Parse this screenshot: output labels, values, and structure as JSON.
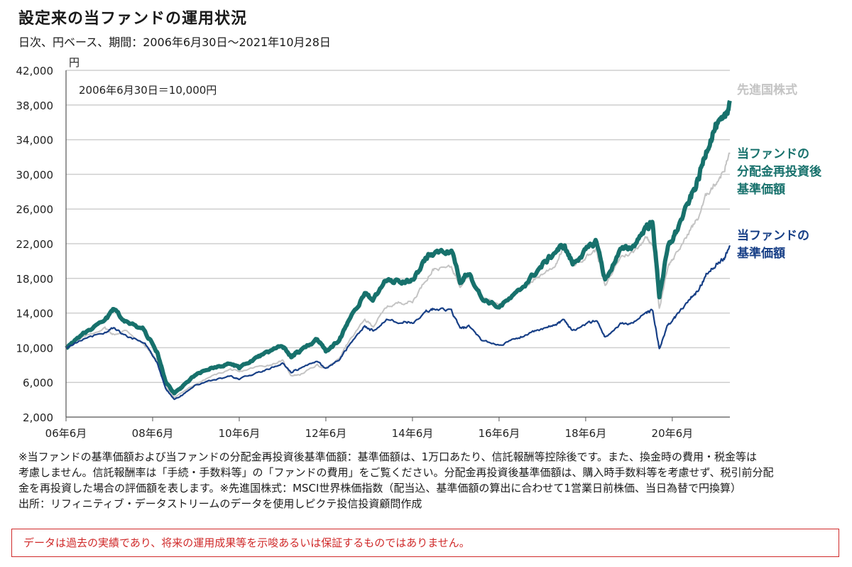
{
  "header": {
    "title": "設定来の当ファンドの運用状況",
    "subtitle": "日次、円ベース、期間：2006年6月30日～2021年10月28日"
  },
  "chart_data": {
    "type": "line",
    "title": "設定来の当ファンドの運用状況",
    "ylabel": "円",
    "xlabel": "",
    "ylim": [
      2000,
      42000
    ],
    "xlim": [
      2006.5,
      2021.83
    ],
    "yticks": [
      2000,
      6000,
      10000,
      14000,
      18000,
      22000,
      26000,
      30000,
      34000,
      38000,
      42000
    ],
    "ytick_labels": [
      "2,000",
      "6,000",
      "10,000",
      "14,000",
      "18,000",
      "22,000",
      "26,000",
      "30,000",
      "34,000",
      "38,000",
      "42,000"
    ],
    "xticks": [
      2006.5,
      2008.5,
      2010.5,
      2012.5,
      2014.5,
      2016.5,
      2018.5,
      2020.5
    ],
    "xtick_labels": [
      "06年6月",
      "08年6月",
      "10年6月",
      "12年6月",
      "14年6月",
      "16年6月",
      "18年6月",
      "20年6月"
    ],
    "grid": "horizontal",
    "annotation": "2006年6月30日＝10,000円",
    "series": [
      {
        "name": "先進国株式",
        "label_lines": [
          "先進国株式"
        ],
        "color": "#c4c4c4",
        "x": [
          2006.5,
          2006.9,
          2007.4,
          2007.6,
          2007.9,
          2008.3,
          2008.6,
          2008.8,
          2009.0,
          2009.2,
          2009.5,
          2009.9,
          2010.3,
          2010.5,
          2010.9,
          2011.2,
          2011.5,
          2011.7,
          2011.9,
          2012.3,
          2012.5,
          2012.8,
          2013.0,
          2013.4,
          2013.6,
          2013.9,
          2014.2,
          2014.5,
          2014.8,
          2015.0,
          2015.4,
          2015.6,
          2015.8,
          2016.1,
          2016.5,
          2016.9,
          2017.2,
          2017.5,
          2017.8,
          2018.0,
          2018.2,
          2018.5,
          2018.75,
          2018.95,
          2019.3,
          2019.6,
          2019.9,
          2020.05,
          2020.2,
          2020.4,
          2020.6,
          2020.9,
          2021.1,
          2021.3,
          2021.5,
          2021.7,
          2021.83
        ],
        "values": [
          10000,
          11200,
          12300,
          11500,
          12000,
          10300,
          8600,
          5500,
          4300,
          4900,
          5800,
          6800,
          7500,
          7200,
          7800,
          8000,
          8500,
          6800,
          6900,
          8000,
          7600,
          8700,
          10500,
          13200,
          12500,
          14700,
          15200,
          15300,
          17800,
          19100,
          19300,
          17200,
          18500,
          15800,
          15100,
          16200,
          17500,
          18500,
          19500,
          21800,
          19500,
          20500,
          21300,
          17000,
          20500,
          21000,
          22800,
          22000,
          14500,
          19500,
          20800,
          23500,
          25000,
          27800,
          29000,
          30500,
          32500
        ]
      },
      {
        "name": "当ファンドの分配金再投資後基準価額",
        "label_lines": [
          "当ファンドの",
          "分配金再投資後",
          "基準価額"
        ],
        "color": "#17716c",
        "x": [
          2006.5,
          2006.9,
          2007.4,
          2007.6,
          2007.9,
          2008.3,
          2008.6,
          2008.8,
          2009.0,
          2009.2,
          2009.5,
          2009.9,
          2010.3,
          2010.5,
          2010.9,
          2011.2,
          2011.5,
          2011.7,
          2011.9,
          2012.3,
          2012.5,
          2012.8,
          2013.0,
          2013.4,
          2013.6,
          2013.9,
          2014.2,
          2014.5,
          2014.8,
          2015.0,
          2015.4,
          2015.6,
          2015.8,
          2016.1,
          2016.5,
          2016.9,
          2017.2,
          2017.5,
          2017.8,
          2018.0,
          2018.2,
          2018.5,
          2018.75,
          2018.95,
          2019.3,
          2019.6,
          2019.9,
          2020.05,
          2020.2,
          2020.4,
          2020.6,
          2020.9,
          2021.1,
          2021.3,
          2021.5,
          2021.7,
          2021.83
        ],
        "values": [
          10000,
          11600,
          13100,
          14400,
          12900,
          12100,
          9500,
          6200,
          4700,
          5600,
          6900,
          7700,
          8200,
          7700,
          8800,
          9600,
          10200,
          9000,
          9600,
          11000,
          9600,
          10800,
          12900,
          16200,
          15600,
          17800,
          17600,
          17800,
          20300,
          20900,
          21000,
          17800,
          18700,
          15700,
          14700,
          16200,
          17900,
          19500,
          21100,
          21800,
          19700,
          21200,
          22300,
          17800,
          21200,
          21700,
          24000,
          24300,
          16000,
          21500,
          23500,
          27000,
          29400,
          33000,
          35500,
          36200,
          38500
        ]
      },
      {
        "name": "当ファンドの基準価額",
        "label_lines": [
          "当ファンドの",
          "基準価額"
        ],
        "color": "#173f86",
        "x": [
          2006.5,
          2006.9,
          2007.4,
          2007.6,
          2007.9,
          2008.3,
          2008.6,
          2008.8,
          2009.0,
          2009.2,
          2009.5,
          2009.9,
          2010.3,
          2010.5,
          2010.9,
          2011.2,
          2011.5,
          2011.7,
          2011.9,
          2012.3,
          2012.5,
          2012.8,
          2013.0,
          2013.4,
          2013.6,
          2013.9,
          2014.2,
          2014.5,
          2014.8,
          2015.0,
          2015.4,
          2015.6,
          2015.8,
          2016.1,
          2016.5,
          2016.9,
          2017.2,
          2017.5,
          2017.8,
          2018.0,
          2018.2,
          2018.5,
          2018.75,
          2018.95,
          2019.3,
          2019.6,
          2019.9,
          2020.05,
          2020.2,
          2020.4,
          2020.6,
          2020.9,
          2021.1,
          2021.3,
          2021.5,
          2021.7,
          2021.83
        ],
        "values": [
          10000,
          11000,
          11800,
          12300,
          11300,
          10700,
          8300,
          5300,
          4000,
          4600,
          5700,
          6300,
          6700,
          6400,
          7100,
          7600,
          8200,
          7200,
          7600,
          8500,
          7600,
          8600,
          10000,
          12500,
          11900,
          13300,
          13000,
          12900,
          14200,
          14500,
          14300,
          12200,
          12400,
          10900,
          10300,
          11000,
          11700,
          12100,
          12700,
          13200,
          12000,
          12700,
          13200,
          11200,
          12700,
          12900,
          14000,
          14300,
          9800,
          12600,
          13700,
          15600,
          16600,
          18600,
          19600,
          20400,
          21800
        ]
      }
    ]
  },
  "notes": {
    "lines": [
      "※当ファンドの基準価額および当ファンドの分配金再投資後基準価額：基準価額は、1万口あたり、信託報酬等控除後です。また、換金時の費用・税金等は",
      "考慮しません。信託報酬率は「手続・手数料等」の「ファンドの費用」をご覧ください。分配金再投資後基準価額は、購入時手数料等を考慮せず、税引前分配",
      "金を再投資した場合の評価額を表します。※先進国株式：MSCI世界株価指数（配当込、基準価額の算出に合わせて1営業日前株価、当日為替で円換算）",
      "出所：リフィニティブ・データストリームのデータを使用しピクテ投信投資顧問作成"
    ]
  },
  "disclaimer": "データは過去の実績であり、将来の運用成果等を示唆あるいは保証するものではありません。"
}
